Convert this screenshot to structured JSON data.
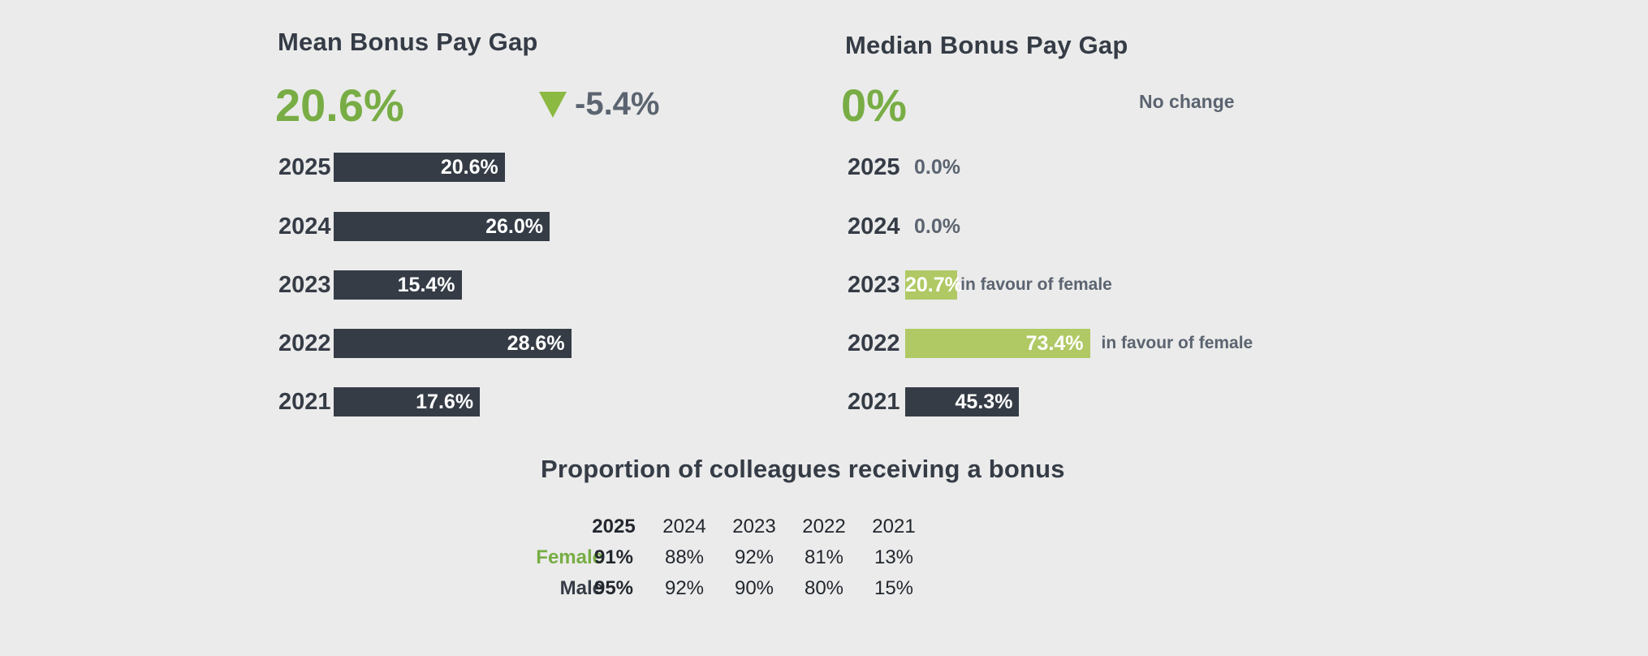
{
  "chart_data": [
    {
      "type": "bar",
      "title": "Mean Bonus Pay Gap",
      "headline_value": "20.6%",
      "change": {
        "direction": "down",
        "label": "-5.4%",
        "icon": "triangle-down-icon"
      },
      "categories": [
        "2025",
        "2024",
        "2023",
        "2022",
        "2021"
      ],
      "values": [
        20.6,
        26.0,
        15.4,
        28.6,
        17.6
      ],
      "labels": [
        "20.6%",
        "26.0%",
        "15.4%",
        "28.6%",
        "17.6%"
      ],
      "colors": [
        "#353c46",
        "#353c46",
        "#353c46",
        "#353c46",
        "#353c46"
      ],
      "orientation": "horizontal"
    },
    {
      "type": "bar",
      "title": "Median Bonus Pay Gap",
      "headline_value": "0%",
      "change": {
        "label": "No change"
      },
      "categories": [
        "2025",
        "2024",
        "2023",
        "2022",
        "2021"
      ],
      "values": [
        0.0,
        0.0,
        20.7,
        73.4,
        45.3
      ],
      "labels": [
        "0.0%",
        "0.0%",
        "20.7%",
        "73.4%",
        "45.3%"
      ],
      "notes": [
        "",
        "",
        "in favour of female",
        "in favour of female",
        ""
      ],
      "colors": [
        "#353c46",
        "#353c46",
        "#b0c965",
        "#b0c965",
        "#353c46"
      ],
      "orientation": "horizontal"
    },
    {
      "type": "table",
      "title": "Proportion of colleagues receiving a bonus",
      "columns": [
        "2025",
        "2024",
        "2023",
        "2022",
        "2021"
      ],
      "rows": [
        {
          "label": "Female",
          "values": [
            "91%",
            "88%",
            "92%",
            "81%",
            "13%"
          ]
        },
        {
          "label": "Male",
          "values": [
            "95%",
            "92%",
            "90%",
            "80%",
            "15%"
          ]
        }
      ],
      "colors": {
        "female": "#78ad45",
        "male": "#353c46"
      }
    }
  ]
}
